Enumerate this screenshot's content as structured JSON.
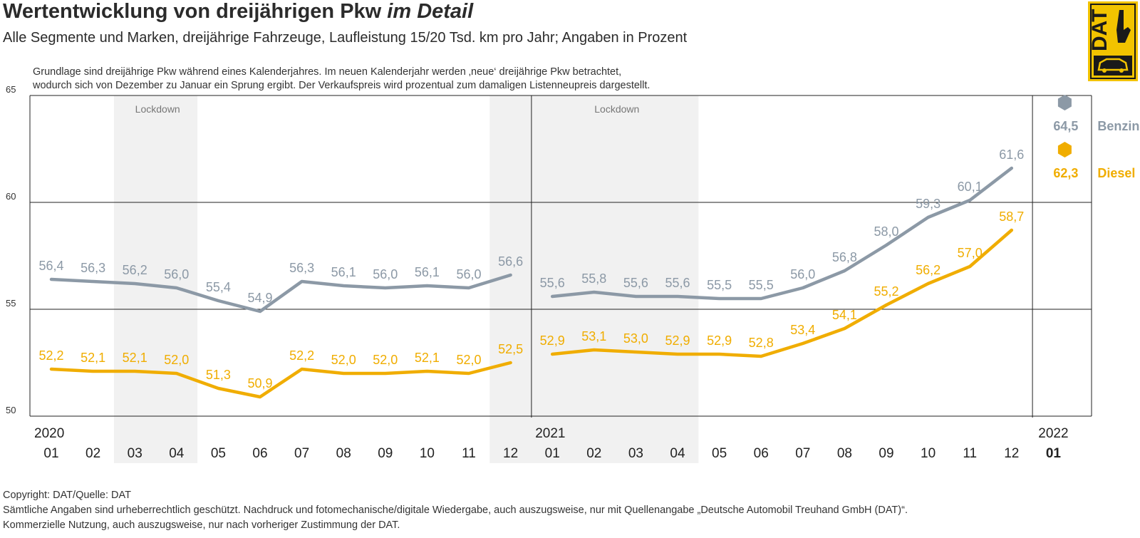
{
  "header": {
    "title_main": "Wertentwicklung von dreijährigen Pkw ",
    "title_emph": "im Detail",
    "subtitle": "Alle Segmente und Marken, dreijährige Fahrzeuge, Laufleistung 15/20 Tsd. km pro Jahr; Angaben in Prozent",
    "note_line1": "Grundlage sind dreijährige Pkw während eines Kalenderjahres. Im neuen Kalenderjahr werden ‚neue‘ dreijährige Pkw betrachtet,",
    "note_line2": "wodurch sich von Dezember zu Januar ein Sprung ergibt. Der Verkaufspreis wird prozentual zum damaligen Listenneupreis dargestellt."
  },
  "logo": {
    "text": "DAT",
    "colors": {
      "yellow": "#f2c300",
      "dark": "#1a1a1a"
    }
  },
  "footer": {
    "copyright": "Copyright: DAT/Quelle: DAT",
    "legal_line1": "Sämtliche Angaben sind urheberrechtlich geschützt. Nachdruck und fotomechanische/digitale Wiedergabe, auch auszugsweise, nur mit Quellenangabe „Deutsche Automobil Treuhand GmbH (DAT)“.",
    "legal_line2": "Kommerzielle Nutzung, auch auszugsweise, nur nach vorheriger Zustimmung der DAT."
  },
  "chart_data": {
    "type": "line",
    "ylim": [
      50,
      65
    ],
    "yticks": [
      50,
      55,
      60,
      65
    ],
    "grid": true,
    "colors": {
      "benzin": "#8c99a6",
      "diesel": "#f0ad00",
      "shade": "#f1f1f1"
    },
    "x_months": [
      "01",
      "02",
      "03",
      "04",
      "05",
      "06",
      "07",
      "08",
      "09",
      "10",
      "11",
      "12",
      "01",
      "02",
      "03",
      "04",
      "05",
      "06",
      "07",
      "08",
      "09",
      "10",
      "11",
      "12",
      "01"
    ],
    "x_years": [
      {
        "index": 0,
        "label": "2020"
      },
      {
        "index": 12,
        "label": "2021"
      },
      {
        "index": 24,
        "label": "2022"
      }
    ],
    "shaded_periods": [
      {
        "from": 1.5,
        "to": 3.5,
        "label": "Lockdown"
      },
      {
        "from": 10.5,
        "to": 15.5,
        "label": "Lockdown"
      }
    ],
    "shaded_label_positions": [
      2,
      13
    ],
    "series": [
      {
        "name": "Benzin",
        "segments": [
          {
            "x": [
              0,
              1,
              2,
              3,
              4,
              5,
              6,
              7,
              8,
              9,
              10,
              11
            ],
            "values": [
              56.4,
              56.3,
              56.2,
              56.0,
              55.4,
              54.9,
              56.3,
              56.1,
              56.0,
              56.1,
              56.0,
              56.6
            ]
          },
          {
            "x": [
              12,
              13,
              14,
              15,
              16,
              17,
              18,
              19,
              20,
              21,
              22,
              23
            ],
            "values": [
              55.6,
              55.8,
              55.6,
              55.6,
              55.5,
              55.5,
              56.0,
              56.8,
              58.0,
              59.3,
              60.1,
              61.6
            ]
          }
        ],
        "labels": [
          "56,4",
          "56,3",
          "56,2",
          "56,0",
          "55,4",
          "54,9",
          "56,3",
          "56,1",
          "56,0",
          "56,1",
          "56,0",
          "56,6",
          "55,6",
          "55,8",
          "55,6",
          "55,6",
          "55,5",
          "55,5",
          "56,0",
          "56,8",
          "58,0",
          "59,3",
          "60,1",
          "61,6"
        ],
        "end": {
          "x": 24,
          "value": 64.5,
          "label": "64,5"
        }
      },
      {
        "name": "Diesel",
        "segments": [
          {
            "x": [
              0,
              1,
              2,
              3,
              4,
              5,
              6,
              7,
              8,
              9,
              10,
              11
            ],
            "values": [
              52.2,
              52.1,
              52.1,
              52.0,
              51.3,
              50.9,
              52.2,
              52.0,
              52.0,
              52.1,
              52.0,
              52.5
            ]
          },
          {
            "x": [
              12,
              13,
              14,
              15,
              16,
              17,
              18,
              19,
              20,
              21,
              22,
              23
            ],
            "values": [
              52.9,
              53.1,
              53.0,
              52.9,
              52.9,
              52.8,
              53.4,
              54.1,
              55.2,
              56.2,
              57.0,
              58.7
            ]
          }
        ],
        "labels": [
          "52,2",
          "52,1",
          "52,1",
          "52,0",
          "51,3",
          "50,9",
          "52,2",
          "52,0",
          "52,0",
          "52,1",
          "52,0",
          "52,5",
          "52,9",
          "53,1",
          "53,0",
          "52,9",
          "52,9",
          "52,8",
          "53,4",
          "54,1",
          "55,2",
          "56,2",
          "57,0",
          "58,7"
        ],
        "end": {
          "x": 24,
          "value": 62.3,
          "label": "62,3"
        }
      }
    ]
  }
}
